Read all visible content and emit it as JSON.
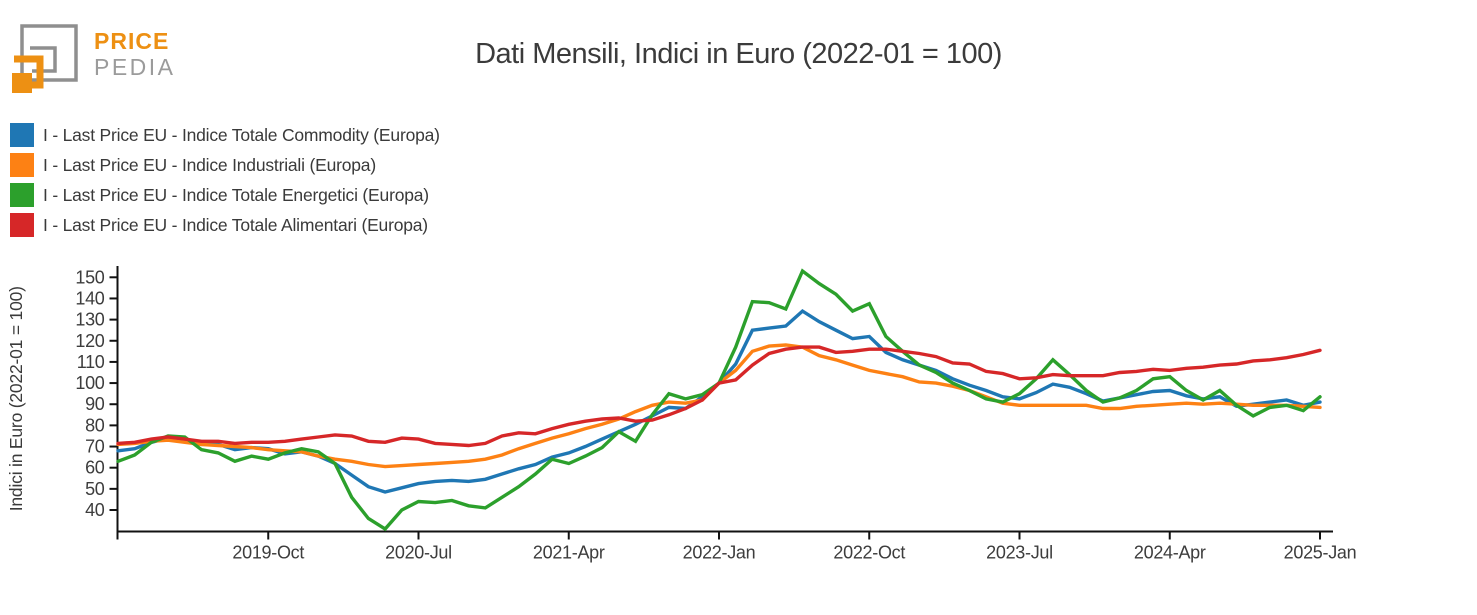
{
  "logo": {
    "brand_top": "PRICE",
    "brand_bottom": "PEDIA",
    "orange": "#ed9013",
    "gray": "#8f8f8f"
  },
  "chart_data": {
    "type": "line",
    "title": "Dati Mensili, Indici in Euro (2022-01 = 100)",
    "xlabel": "",
    "ylabel": "Indici in Euro (2022-01 = 100)",
    "ylim": [
      30,
      156
    ],
    "grid": false,
    "legend_position": "top-left",
    "yticks": [
      40,
      50,
      60,
      70,
      80,
      90,
      100,
      110,
      120,
      130,
      140,
      150
    ],
    "xtick_labels": [
      "2019-Oct",
      "2020-Jul",
      "2021-Apr",
      "2022-Jan",
      "2022-Oct",
      "2023-Jul",
      "2024-Apr",
      "2025-Jan"
    ],
    "xtick_indices": [
      9,
      18,
      27,
      36,
      45,
      54,
      63,
      72
    ],
    "x": [
      "2019-01",
      "2019-02",
      "2019-03",
      "2019-04",
      "2019-05",
      "2019-06",
      "2019-07",
      "2019-08",
      "2019-09",
      "2019-10",
      "2019-11",
      "2019-12",
      "2020-01",
      "2020-02",
      "2020-03",
      "2020-04",
      "2020-05",
      "2020-06",
      "2020-07",
      "2020-08",
      "2020-09",
      "2020-10",
      "2020-11",
      "2020-12",
      "2021-01",
      "2021-02",
      "2021-03",
      "2021-04",
      "2021-05",
      "2021-06",
      "2021-07",
      "2021-08",
      "2021-09",
      "2021-10",
      "2021-11",
      "2021-12",
      "2022-01",
      "2022-02",
      "2022-03",
      "2022-04",
      "2022-05",
      "2022-06",
      "2022-07",
      "2022-08",
      "2022-09",
      "2022-10",
      "2022-11",
      "2022-12",
      "2023-01",
      "2023-02",
      "2023-03",
      "2023-04",
      "2023-05",
      "2023-06",
      "2023-07",
      "2023-08",
      "2023-09",
      "2023-10",
      "2023-11",
      "2023-12",
      "2024-01",
      "2024-02",
      "2024-03",
      "2024-04",
      "2024-05",
      "2024-06",
      "2024-07",
      "2024-08",
      "2024-09",
      "2024-10",
      "2024-11",
      "2024-12",
      "2025-01"
    ],
    "series": [
      {
        "name": "I - Last Price EU - Indice Totale Commodity (Europa)",
        "color": "#1f77b4",
        "values": [
          68,
          69,
          72,
          74,
          73,
          71,
          71,
          68.5,
          69.5,
          69,
          66.5,
          67.5,
          65.5,
          62,
          56.5,
          51,
          48.5,
          50.5,
          52.5,
          53.5,
          54,
          53.5,
          54.5,
          57,
          59.5,
          61.5,
          65,
          67,
          70,
          73.5,
          77,
          80.5,
          84.5,
          88.5,
          88,
          93.5,
          100,
          109,
          125,
          126,
          127,
          134,
          129,
          125,
          121,
          122,
          114.5,
          111,
          108.5,
          106,
          102,
          99,
          96.5,
          93.5,
          92.5,
          95.5,
          99.5,
          98,
          95,
          91.5,
          93,
          94.5,
          96,
          96.5,
          94,
          92.5,
          93.5,
          89,
          90,
          91,
          92,
          89.5,
          91
        ]
      },
      {
        "name": "I - Last Price EU - Indice Industriali (Europa)",
        "color": "#fd8114",
        "values": [
          71,
          71.5,
          72.5,
          73,
          72,
          71,
          70.5,
          70,
          69.5,
          68.5,
          68,
          67.5,
          65.5,
          64,
          63,
          61.5,
          60.5,
          61,
          61.5,
          62,
          62.5,
          63,
          64,
          66,
          69,
          71.5,
          74,
          76,
          78.5,
          80.5,
          83,
          86.5,
          89.5,
          91,
          90.5,
          92,
          100,
          106,
          115,
          117.5,
          118,
          117,
          113,
          111,
          108.5,
          106,
          104.5,
          103,
          100.5,
          100,
          98.5,
          96.5,
          93.5,
          90.5,
          89.5,
          89.5,
          89.5,
          89.5,
          89.5,
          88,
          88,
          89,
          89.5,
          90,
          90.5,
          90,
          90.5,
          90,
          89.5,
          89.5,
          89.5,
          89,
          88.5
        ]
      },
      {
        "name": "I - Last Price EU - Indice Totale Energetici (Europa)",
        "color": "#2ca02c",
        "values": [
          63,
          66,
          72,
          75,
          74.5,
          68.5,
          67,
          63,
          65.5,
          64,
          67,
          69,
          67.5,
          62,
          46,
          36,
          31,
          40,
          44,
          43.5,
          44.5,
          42,
          41,
          46,
          51,
          57,
          64,
          62,
          65.5,
          69.5,
          77,
          72.5,
          85,
          95,
          92.5,
          94.5,
          100,
          117,
          138.5,
          138,
          135,
          153,
          147,
          142,
          134,
          137.5,
          122,
          115,
          108.5,
          105,
          100,
          96.5,
          92.5,
          91,
          95,
          102,
          111,
          104,
          96.5,
          91,
          93,
          96.5,
          102,
          103,
          96.5,
          92,
          96.5,
          89.5,
          84.5,
          88.5,
          89.5,
          87,
          93.5
        ]
      },
      {
        "name": "I - Last Price EU - Indice Totale Alimentari (Europa)",
        "color": "#d62728",
        "values": [
          71.5,
          72,
          73.5,
          74.5,
          73.5,
          72.5,
          72.5,
          71.5,
          72,
          72,
          72.5,
          73.5,
          74.5,
          75.5,
          75,
          72.5,
          72,
          74,
          73.5,
          71.5,
          71,
          70.5,
          71.5,
          75,
          76.5,
          76,
          78.5,
          80.5,
          82,
          83,
          83.5,
          82,
          82.5,
          85,
          88,
          92,
          100,
          101.5,
          108.5,
          114,
          116,
          117,
          117,
          114.5,
          115,
          116,
          116,
          115,
          114,
          112.5,
          109.5,
          109,
          105.5,
          104.5,
          102,
          102.5,
          104,
          103.5,
          103.5,
          103.5,
          105,
          105.5,
          106.5,
          106,
          107,
          107.5,
          108.5,
          109,
          110.5,
          111,
          112,
          113.5,
          115.5
        ]
      }
    ]
  }
}
